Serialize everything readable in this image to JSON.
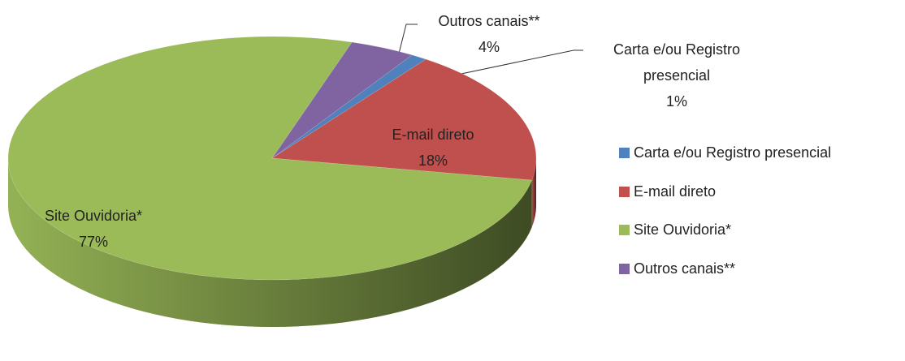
{
  "chart_data": {
    "type": "pie3d",
    "categories": [
      "Carta e/ou Registro presencial",
      "E-mail direto",
      "Site Ouvidoria*",
      "Outros canais**"
    ],
    "values": [
      1,
      18,
      77,
      4
    ],
    "value_labels": [
      "1%",
      "18%",
      "77%",
      "4%"
    ],
    "colors": [
      "#4f81bd",
      "#c0504d",
      "#9bbb59",
      "#8064a2"
    ],
    "legend": "right"
  }
}
